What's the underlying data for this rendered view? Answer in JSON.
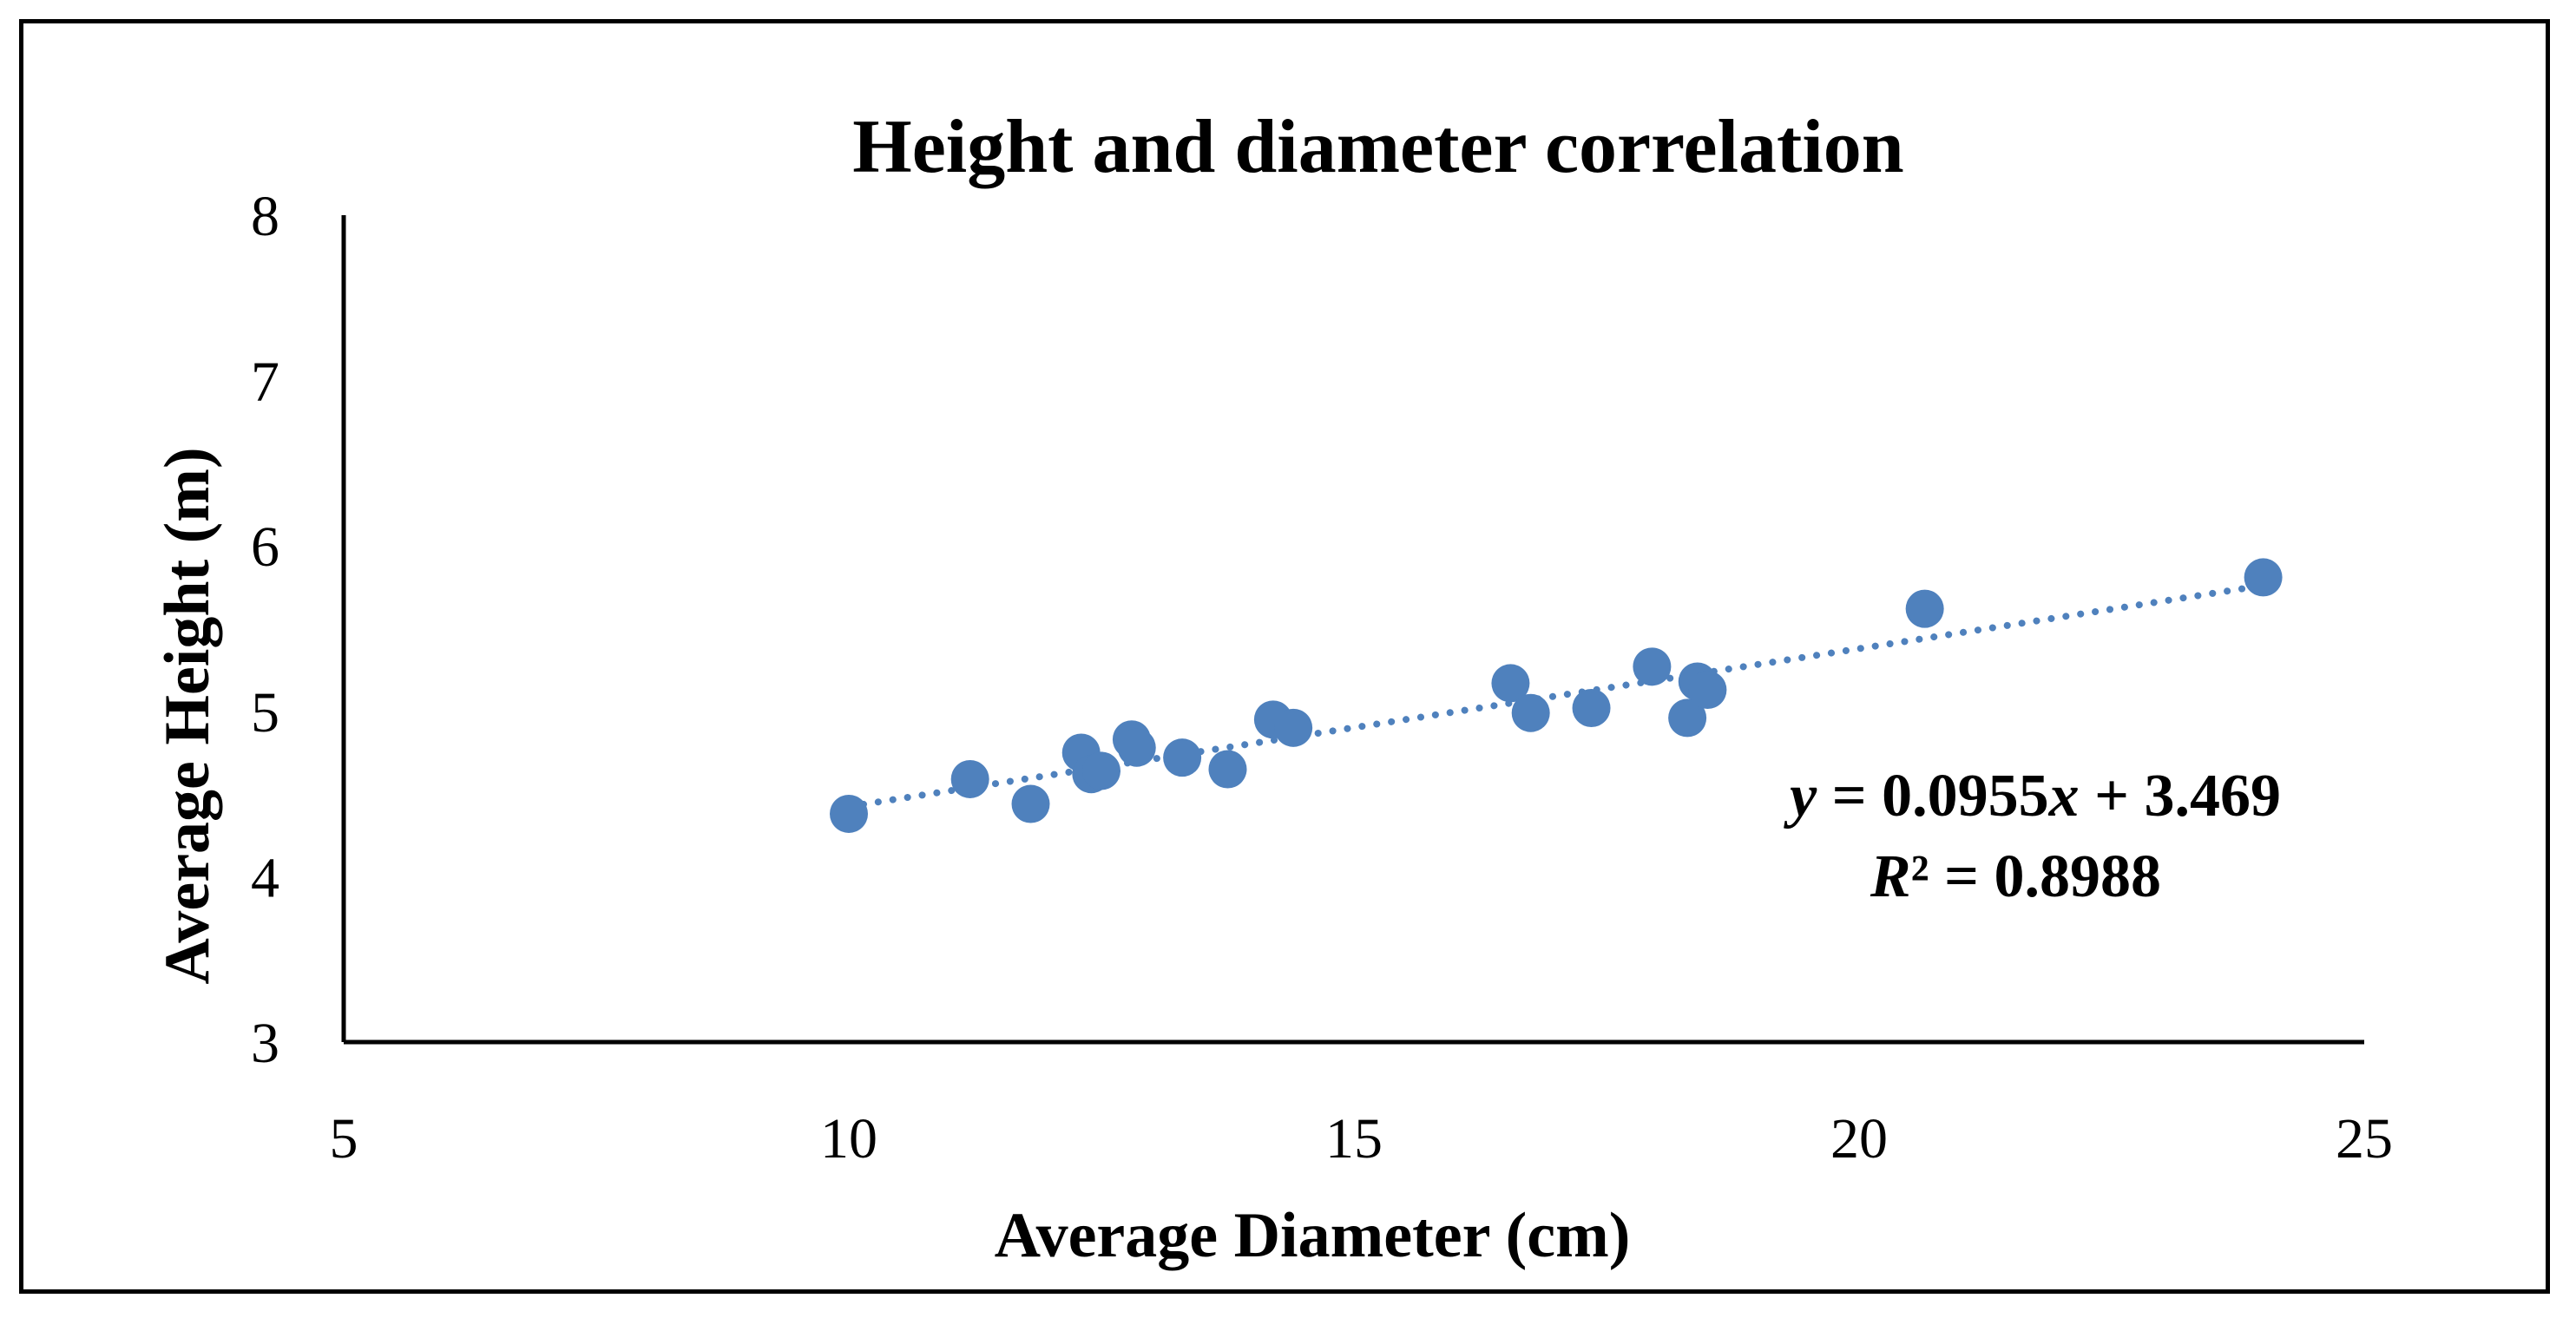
{
  "chart_data": {
    "type": "scatter",
    "title": "Height and diameter correlation",
    "xlabel": "Average Diameter (cm)",
    "ylabel": "Average Height (m)",
    "xlim": [
      5,
      25
    ],
    "ylim": [
      3,
      8
    ],
    "xticks": [
      "5",
      "10",
      "15",
      "20",
      "25"
    ],
    "yticks": [
      "3",
      "4",
      "5",
      "6",
      "7",
      "8"
    ],
    "grid": false,
    "color": "#4F81BD",
    "points": [
      {
        "x": 10.0,
        "y": 4.38
      },
      {
        "x": 11.2,
        "y": 4.59
      },
      {
        "x": 11.8,
        "y": 4.44
      },
      {
        "x": 12.3,
        "y": 4.75
      },
      {
        "x": 12.4,
        "y": 4.62
      },
      {
        "x": 12.5,
        "y": 4.64
      },
      {
        "x": 12.8,
        "y": 4.83
      },
      {
        "x": 12.85,
        "y": 4.78
      },
      {
        "x": 13.3,
        "y": 4.72
      },
      {
        "x": 13.75,
        "y": 4.65
      },
      {
        "x": 14.2,
        "y": 4.95
      },
      {
        "x": 14.4,
        "y": 4.9
      },
      {
        "x": 16.55,
        "y": 5.17
      },
      {
        "x": 16.75,
        "y": 4.99
      },
      {
        "x": 17.35,
        "y": 5.02
      },
      {
        "x": 17.95,
        "y": 5.27
      },
      {
        "x": 18.3,
        "y": 4.96
      },
      {
        "x": 18.4,
        "y": 5.18
      },
      {
        "x": 18.5,
        "y": 5.13
      },
      {
        "x": 20.65,
        "y": 5.62
      },
      {
        "x": 24.0,
        "y": 5.81
      }
    ],
    "trendline": {
      "style": "dotted",
      "slope": 0.0955,
      "intercept": 3.469,
      "x_range": [
        10.0,
        24.0
      ],
      "equation_y": "y",
      "equation_rest": " = 0.0955",
      "equation_x": "x",
      "equation_tail": " + 3.469",
      "r2_label": "R",
      "r2_rest": "² = 0.8988"
    }
  }
}
